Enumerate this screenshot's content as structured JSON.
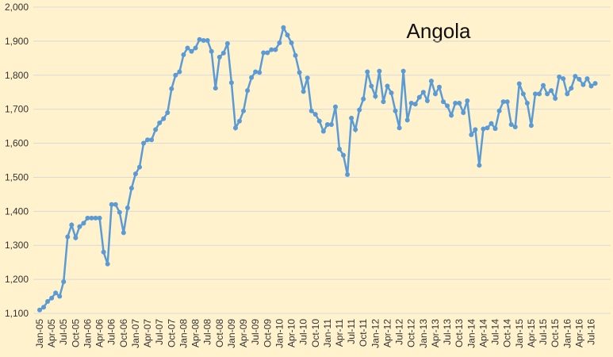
{
  "chart_data": {
    "type": "line",
    "title": "Angola",
    "categories": [
      "Jan-05",
      null,
      null,
      "Apr-05",
      null,
      null,
      "Jul-05",
      null,
      null,
      "Oct-05",
      null,
      null,
      "Jan-06",
      null,
      null,
      "Apr-06",
      null,
      null,
      "Jul-06",
      null,
      null,
      "Oct-06",
      null,
      null,
      "Jan-07",
      null,
      null,
      "Apr-07",
      null,
      null,
      "Jul-07",
      null,
      null,
      "Oct-07",
      null,
      null,
      "Jan-08",
      null,
      null,
      "Apr-08",
      null,
      null,
      "Jul-08",
      null,
      null,
      "Oct-08",
      null,
      null,
      "Jan-09",
      null,
      null,
      "Apr-09",
      null,
      null,
      "Jul-09",
      null,
      null,
      "Oct-09",
      null,
      null,
      "Jan-10",
      null,
      null,
      "Apr-10",
      null,
      null,
      "Jul-10",
      null,
      null,
      "Oct-10",
      null,
      null,
      "Jan-11",
      null,
      null,
      "Apr-11",
      null,
      null,
      "Jul-11",
      null,
      null,
      "Oct-11",
      null,
      null,
      "Jan-12",
      null,
      null,
      "Apr-12",
      null,
      null,
      "Jul-12",
      null,
      null,
      "Oct-12",
      null,
      null,
      "Jan-13",
      null,
      null,
      "Apr-13",
      null,
      null,
      "Jul-13",
      null,
      null,
      "Oct-13",
      null,
      null,
      "Jan-14",
      null,
      null,
      "Apr-14",
      null,
      null,
      "Jul-14",
      null,
      null,
      "Oct-14",
      null,
      null,
      "Jan-15",
      null,
      null,
      "Apr-15",
      null,
      null,
      "Jul-15",
      null,
      null,
      "Oct-15",
      null,
      null,
      "Jan-16",
      null,
      null,
      "Apr-16",
      null,
      null,
      "Jul-16",
      null
    ],
    "values": [
      1110,
      1118,
      1135,
      1145,
      1160,
      1150,
      1193,
      1325,
      1360,
      1322,
      1355,
      1365,
      1380,
      1380,
      1380,
      1380,
      1280,
      1245,
      1420,
      1420,
      1397,
      1337,
      1410,
      1468,
      1510,
      1530,
      1600,
      1610,
      1610,
      1640,
      1660,
      1672,
      1690,
      1760,
      1800,
      1810,
      1860,
      1880,
      1870,
      1880,
      1905,
      1902,
      1902,
      1870,
      1762,
      1853,
      1865,
      1893,
      1778,
      1645,
      1665,
      1695,
      1755,
      1793,
      1810,
      1808,
      1866,
      1866,
      1875,
      1875,
      1895,
      1940,
      1918,
      1895,
      1858,
      1808,
      1752,
      1792,
      1695,
      1685,
      1665,
      1635,
      1655,
      1655,
      1707,
      1583,
      1565,
      1508,
      1674,
      1640,
      1698,
      1730,
      1810,
      1768,
      1738,
      1812,
      1722,
      1768,
      1748,
      1695,
      1645,
      1812,
      1668,
      1718,
      1715,
      1735,
      1750,
      1725,
      1783,
      1745,
      1765,
      1722,
      1710,
      1682,
      1718,
      1718,
      1690,
      1725,
      1625,
      1640,
      1535,
      1642,
      1645,
      1658,
      1643,
      1695,
      1722,
      1722,
      1655,
      1648,
      1775,
      1745,
      1718,
      1652,
      1745,
      1745,
      1770,
      1745,
      1755,
      1732,
      1795,
      1790,
      1745,
      1762,
      1797,
      1788,
      1772,
      1790,
      1768,
      1776
    ],
    "color": "#5b9bd5",
    "ylim": [
      1100,
      2000
    ],
    "yticks": [
      {
        "value": 1100,
        "label": "1,100"
      },
      {
        "value": 1200,
        "label": "1,200"
      },
      {
        "value": 1300,
        "label": "1,300"
      },
      {
        "value": 1400,
        "label": "1,400"
      },
      {
        "value": 1500,
        "label": "1,500"
      },
      {
        "value": 1600,
        "label": "1,600"
      },
      {
        "value": 1700,
        "label": "1,700"
      },
      {
        "value": 1800,
        "label": "1,800"
      },
      {
        "value": 1900,
        "label": "1,900"
      },
      {
        "value": 2000,
        "label": "2,000"
      }
    ],
    "grid": true
  }
}
